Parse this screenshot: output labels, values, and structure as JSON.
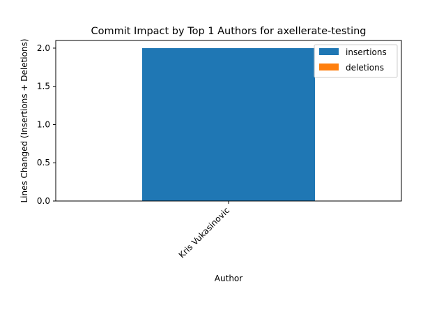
{
  "chart_data": {
    "type": "bar",
    "stacked": true,
    "title": "Commit Impact by Top 1 Authors for axellerate-testing",
    "xlabel": "Author",
    "ylabel": "Lines Changed (Insertions + Deletions)",
    "categories": [
      "Kris Vukasinovic"
    ],
    "series": [
      {
        "name": "insertions",
        "values": [
          2
        ],
        "color": "#1f77b4"
      },
      {
        "name": "deletions",
        "values": [
          0
        ],
        "color": "#ff7f0e"
      }
    ],
    "ylim": [
      0,
      2.1
    ],
    "yticks": [
      0.0,
      0.5,
      1.0,
      1.5,
      2.0
    ],
    "ytick_labels": [
      "0.0",
      "0.5",
      "1.0",
      "1.5",
      "2.0"
    ],
    "grid": false,
    "legend": "top-right"
  }
}
